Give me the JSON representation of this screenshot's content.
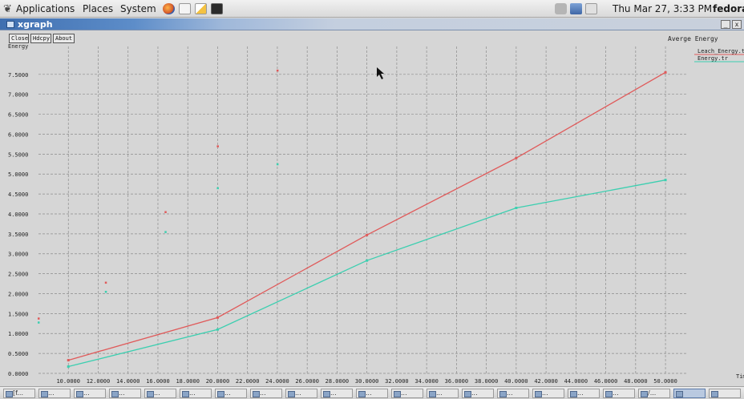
{
  "top_panel": {
    "menu_applications": "Applications",
    "menu_places": "Places",
    "menu_system": "System",
    "datetime": "Thu Mar 27,  3:33 PM",
    "user": "fedora"
  },
  "window": {
    "title": "xgraph",
    "minimize": "_",
    "close": "x"
  },
  "xgraph": {
    "buttons": {
      "close": "Close",
      "hdcpy": "Hdcpy",
      "about": "About"
    },
    "y_axis_label": "Energy",
    "plot_title": "Averge Energy",
    "x_axis_label": "Time"
  },
  "chart_data": {
    "type": "line",
    "title": "Averge Energy",
    "ylabel": "Energy",
    "xlabel": "Time",
    "xlim": [
      8.0,
      51.5
    ],
    "ylim": [
      0.0,
      8.2
    ],
    "x_ticks": [
      "10.0000",
      "12.0000",
      "14.0000",
      "16.0000",
      "18.0000",
      "20.0000",
      "22.0000",
      "24.0000",
      "26.0000",
      "28.0000",
      "30.0000",
      "32.0000",
      "34.0000",
      "36.0000",
      "38.0000",
      "40.0000",
      "42.0000",
      "44.0000",
      "46.0000",
      "48.0000",
      "50.0000"
    ],
    "x_tick_values": [
      10,
      12,
      14,
      16,
      18,
      20,
      22,
      24,
      26,
      28,
      30,
      32,
      34,
      36,
      38,
      40,
      42,
      44,
      46,
      48,
      50
    ],
    "y_ticks": [
      "0.0000",
      "0.5000",
      "1.0000",
      "1.5000",
      "2.0000",
      "2.5000",
      "3.0000",
      "3.5000",
      "4.0000",
      "4.5000",
      "5.0000",
      "5.5000",
      "6.0000",
      "6.5000",
      "7.0000",
      "7.5000"
    ],
    "y_tick_values": [
      0,
      0.5,
      1,
      1.5,
      2,
      2.5,
      3,
      3.5,
      4,
      4.5,
      5,
      5.5,
      6,
      6.5,
      7,
      7.5
    ],
    "grid": true,
    "legend_position": "top-right",
    "series": [
      {
        "name": "Leach_Energy.tr",
        "color": "#e05a5a",
        "x": [
          10,
          20,
          30,
          40,
          50
        ],
        "y": [
          0.33,
          1.4,
          3.47,
          5.4,
          7.55
        ]
      },
      {
        "name": "Energy.tr",
        "color": "#3ccfb0",
        "x": [
          10,
          20,
          30,
          40,
          50
        ],
        "y": [
          0.17,
          1.1,
          2.83,
          4.15,
          4.85
        ]
      }
    ],
    "stray_points": [
      {
        "color": "#e05a5a",
        "x": 8.0,
        "y": 1.38
      },
      {
        "color": "#3ccfb0",
        "x": 8.0,
        "y": 1.28
      },
      {
        "color": "#e05a5a",
        "x": 12.5,
        "y": 2.28
      },
      {
        "color": "#3ccfb0",
        "x": 12.5,
        "y": 2.05
      },
      {
        "color": "#e05a5a",
        "x": 16.5,
        "y": 4.05
      },
      {
        "color": "#3ccfb0",
        "x": 16.5,
        "y": 3.55
      },
      {
        "color": "#e05a5a",
        "x": 20.0,
        "y": 5.7
      },
      {
        "color": "#3ccfb0",
        "x": 20.0,
        "y": 4.65
      },
      {
        "color": "#e05a5a",
        "x": 24.0,
        "y": 7.6
      },
      {
        "color": "#3ccfb0",
        "x": 24.0,
        "y": 5.25
      }
    ]
  },
  "taskbar": {
    "items": [
      "[f...",
      "...",
      "...",
      "...",
      "...",
      "...",
      "...",
      "...",
      "...",
      "...",
      "...",
      "...",
      "...",
      "...",
      "...",
      "...",
      "...",
      "...",
      "/...",
      "",
      ""
    ]
  }
}
